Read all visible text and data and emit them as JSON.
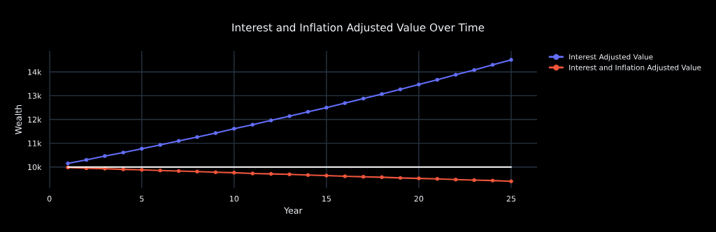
{
  "chart_data": {
    "type": "line",
    "title": "Interest and Inflation Adjusted Value Over Time",
    "xlabel": "Year",
    "ylabel": "Wealth",
    "x": [
      1,
      2,
      3,
      4,
      5,
      6,
      7,
      8,
      9,
      10,
      11,
      12,
      13,
      14,
      15,
      16,
      17,
      18,
      19,
      20,
      21,
      22,
      23,
      24,
      25
    ],
    "series": [
      {
        "name": "Interest Adjusted Value",
        "color": "#636efa",
        "values": [
          10150,
          10300,
          10460,
          10610,
          10770,
          10930,
          11100,
          11260,
          11430,
          11610,
          11780,
          11960,
          12140,
          12320,
          12500,
          12690,
          12880,
          13070,
          13270,
          13470,
          13670,
          13880,
          14080,
          14300,
          14510
        ]
      },
      {
        "name": "Interest and Inflation Adjusted Value",
        "color": "#ef553b",
        "values": [
          9980,
          9950,
          9930,
          9900,
          9880,
          9850,
          9830,
          9810,
          9780,
          9760,
          9730,
          9710,
          9690,
          9660,
          9640,
          9610,
          9590,
          9570,
          9540,
          9520,
          9500,
          9470,
          9450,
          9430,
          9400
        ]
      },
      {
        "color": "#ffffff",
        "x": [
          1,
          25
        ],
        "values": [
          10000,
          10000
        ],
        "marker": "none"
      }
    ],
    "xlim": [
      0,
      26.4
    ],
    "ylim": [
      9120,
      14880
    ],
    "xticks": [
      0,
      5,
      10,
      15,
      20,
      25
    ],
    "yticks": [
      {
        "value": 10000,
        "label": "10k"
      },
      {
        "value": 11000,
        "label": "11k"
      },
      {
        "value": 12000,
        "label": "12k"
      },
      {
        "value": 13000,
        "label": "13k"
      },
      {
        "value": 14000,
        "label": "14k"
      }
    ],
    "grid": true,
    "legend": "top right",
    "marker": "circle",
    "line_style": "solid"
  }
}
